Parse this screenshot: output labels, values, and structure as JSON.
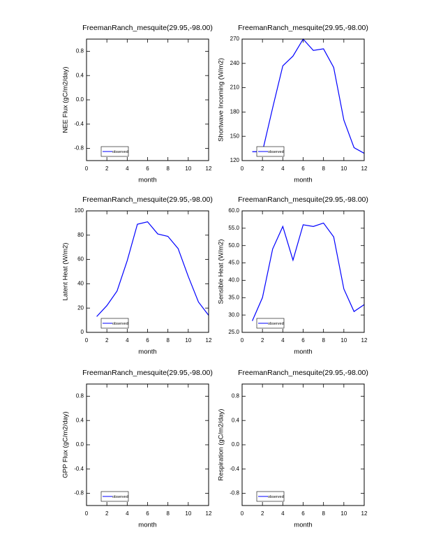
{
  "chart_data": [
    {
      "type": "line",
      "title": "FreemanRanch_mesquite(29.95,-98.00)",
      "xlabel": "month",
      "ylabel": "NEE Flux (gC/m2/day)",
      "x": [],
      "series": [
        {
          "name": "observed",
          "color": "#0000ff",
          "values": []
        }
      ],
      "xlim": [
        0,
        12
      ],
      "xticks": [
        0,
        2,
        4,
        6,
        8,
        10,
        12
      ],
      "ylim": [
        -1,
        1
      ],
      "yticks": [
        -0.8,
        -0.4,
        {
          "value": 0,
          "label": "0.0"
        },
        0.4,
        0.8
      ],
      "legend": "lower left"
    },
    {
      "type": "line",
      "title": "FreemanRanch_mesquite(29.95,-98.00)",
      "xlabel": "month",
      "ylabel": "Shortwave Incoming (W/m2)",
      "x": [
        1,
        2,
        3,
        4,
        5,
        6,
        7,
        8,
        9,
        10,
        11,
        12
      ],
      "series": [
        {
          "name": "observed",
          "color": "#0000ff",
          "values": [
            131,
            131,
            185,
            237,
            249,
            270,
            256,
            258,
            235,
            170,
            136,
            129
          ]
        }
      ],
      "xlim": [
        0,
        12
      ],
      "xticks": [
        0,
        2,
        4,
        6,
        8,
        10,
        12
      ],
      "ylim": [
        120,
        270
      ],
      "yticks": [
        120,
        150,
        180,
        210,
        240,
        270
      ],
      "legend": "lower left"
    },
    {
      "type": "line",
      "title": "FreemanRanch_mesquite(29.95,-98.00)",
      "xlabel": "month",
      "ylabel": "Latent Heat (W/m2)",
      "x": [
        1,
        2,
        3,
        4,
        5,
        6,
        7,
        8,
        9,
        10,
        11,
        12
      ],
      "series": [
        {
          "name": "observed",
          "color": "#0000ff",
          "values": [
            13,
            22,
            34,
            59,
            89,
            91,
            81,
            79,
            69,
            46,
            25,
            14
          ]
        }
      ],
      "xlim": [
        0,
        12
      ],
      "xticks": [
        0,
        2,
        4,
        6,
        8,
        10,
        12
      ],
      "ylim": [
        0,
        100
      ],
      "yticks": [
        0,
        20,
        40,
        60,
        80,
        100
      ],
      "legend": "lower left"
    },
    {
      "type": "line",
      "title": "FreemanRanch_mesquite(29.95,-98.00)",
      "xlabel": "month",
      "ylabel": "Sensible Heat (W/m2)",
      "x": [
        1,
        2,
        3,
        4,
        5,
        6,
        7,
        8,
        9,
        10,
        11,
        12
      ],
      "series": [
        {
          "name": "observed",
          "color": "#0000ff",
          "values": [
            28.3,
            35,
            49,
            55.5,
            45.8,
            56,
            55.5,
            56.5,
            52.5,
            37.5,
            31,
            33
          ]
        }
      ],
      "xlim": [
        0,
        12
      ],
      "xticks": [
        0,
        2,
        4,
        6,
        8,
        10,
        12
      ],
      "ylim": [
        25,
        60
      ],
      "yticks": [
        {
          "value": 25,
          "label": "25.0"
        },
        {
          "value": 30,
          "label": "30.0"
        },
        {
          "value": 35,
          "label": "35.0"
        },
        {
          "value": 40,
          "label": "40.0"
        },
        {
          "value": 45,
          "label": "45.0"
        },
        {
          "value": 50,
          "label": "50.0"
        },
        {
          "value": 55,
          "label": "55.0"
        },
        {
          "value": 60,
          "label": "60.0"
        }
      ],
      "legend": "lower left"
    },
    {
      "type": "line",
      "title": "FreemanRanch_mesquite(29.95,-98.00)",
      "xlabel": "month",
      "ylabel": "GPP Flux (gC/m2/day)",
      "x": [],
      "series": [
        {
          "name": "observed",
          "color": "#0000ff",
          "values": []
        }
      ],
      "xlim": [
        0,
        12
      ],
      "xticks": [
        0,
        2,
        4,
        6,
        8,
        10,
        12
      ],
      "ylim": [
        -1,
        1
      ],
      "yticks": [
        -0.8,
        -0.4,
        {
          "value": 0,
          "label": "0.0"
        },
        0.4,
        0.8
      ],
      "legend": "lower left"
    },
    {
      "type": "line",
      "title": "FreemanRanch_mesquite(29.95,-98.00)",
      "xlabel": "month",
      "ylabel": "Respiration (gC/m2/day)",
      "x": [],
      "series": [
        {
          "name": "observed",
          "color": "#0000ff",
          "values": []
        }
      ],
      "xlim": [
        0,
        12
      ],
      "xticks": [
        0,
        2,
        4,
        6,
        8,
        10,
        12
      ],
      "ylim": [
        -1,
        1
      ],
      "yticks": [
        -0.8,
        -0.4,
        {
          "value": 0,
          "label": "0.0"
        },
        0.4,
        0.8
      ],
      "legend": "lower left"
    }
  ]
}
